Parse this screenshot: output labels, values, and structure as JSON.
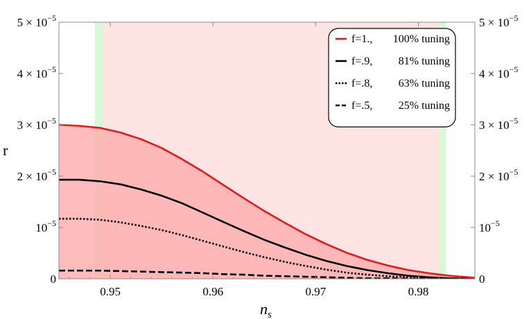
{
  "chart_data": {
    "type": "line",
    "xlabel": "n",
    "xlabel_sub": "s",
    "ylabel": "r",
    "xlim": [
      0.945,
      0.9855
    ],
    "ylim": [
      0,
      5e-05
    ],
    "x_ticks": [
      {
        "value": 0.95,
        "label": "0.95"
      },
      {
        "value": 0.96,
        "label": "0.96"
      },
      {
        "value": 0.97,
        "label": "0.97"
      },
      {
        "value": 0.98,
        "label": "0.98"
      }
    ],
    "y_ticks": [
      {
        "value": 0,
        "label": "0",
        "mantissa": "",
        "exp": ""
      },
      {
        "value": 1e-05,
        "label": "10",
        "mantissa": "",
        "exp": "−5"
      },
      {
        "value": 2e-05,
        "label": "10",
        "mantissa": "2 × ",
        "exp": "−5"
      },
      {
        "value": 3e-05,
        "label": "10",
        "mantissa": "3 × ",
        "exp": "−5"
      },
      {
        "value": 4e-05,
        "label": "10",
        "mantissa": "4 × ",
        "exp": "−5"
      },
      {
        "value": 5e-05,
        "label": "10",
        "mantissa": "5 × ",
        "exp": "−5"
      }
    ],
    "bands": [
      {
        "from": 0.9485,
        "to": 0.9827,
        "color": "#ffe4e4"
      },
      {
        "from": 0.9485,
        "to": 0.9493,
        "color": "#d8f8d8"
      },
      {
        "from": 0.982,
        "to": 0.9827,
        "color": "#d8f8d8"
      }
    ],
    "fill_under_series": 0,
    "fill_color": "#ffb0b0",
    "series": [
      {
        "name": "f=1., 100% tuning",
        "color": "#e41a1a",
        "dash": "solid",
        "x": [
          0.945,
          0.947,
          0.949,
          0.951,
          0.953,
          0.955,
          0.957,
          0.959,
          0.961,
          0.963,
          0.965,
          0.967,
          0.969,
          0.971,
          0.973,
          0.975,
          0.977,
          0.979,
          0.981,
          0.983,
          0.9855
        ],
        "values": [
          3e-05,
          2.98e-05,
          2.94e-05,
          2.85e-05,
          2.72e-05,
          2.55e-05,
          2.33e-05,
          2.09e-05,
          1.83e-05,
          1.57e-05,
          1.32e-05,
          1.09e-05,
          8.7e-06,
          6.8e-06,
          5.1e-06,
          3.7e-06,
          2.6e-06,
          1.7e-06,
          1.1e-06,
          6e-07,
          2e-07
        ]
      },
      {
        "name": "f=.9, 81% tuning",
        "color": "#000000",
        "dash": "solid",
        "x": [
          0.945,
          0.947,
          0.949,
          0.951,
          0.953,
          0.955,
          0.957,
          0.959,
          0.961,
          0.963,
          0.965,
          0.967,
          0.969,
          0.971,
          0.973,
          0.975,
          0.977,
          0.979,
          0.981,
          0.983,
          0.9855
        ],
        "values": [
          1.93e-05,
          1.93e-05,
          1.9e-05,
          1.84e-05,
          1.74e-05,
          1.62e-05,
          1.47e-05,
          1.29e-05,
          1.11e-05,
          9.3e-06,
          7.6e-06,
          6.1e-06,
          4.7e-06,
          3.5e-06,
          2.5e-06,
          1.7e-06,
          1.1e-06,
          6e-07,
          3e-07,
          1e-07,
          0
        ]
      },
      {
        "name": "f=.8, 63% tuning",
        "color": "#000000",
        "dash": "dotted",
        "x": [
          0.945,
          0.947,
          0.949,
          0.951,
          0.953,
          0.955,
          0.957,
          0.959,
          0.961,
          0.963,
          0.965,
          0.967,
          0.969,
          0.971,
          0.973,
          0.975,
          0.977,
          0.979,
          0.981,
          0.983,
          0.9855
        ],
        "values": [
          1.17e-05,
          1.17e-05,
          1.15e-05,
          1.1e-05,
          1.03e-05,
          9.5e-06,
          8.5e-06,
          7.4e-06,
          6.3e-06,
          5.2e-06,
          4.2e-06,
          3.3e-06,
          2.5e-06,
          1.8e-06,
          1.2e-06,
          8e-07,
          5e-07,
          3e-07,
          1e-07,
          1e-07,
          0
        ]
      },
      {
        "name": "f=.5, 25% tuning",
        "color": "#000000",
        "dash": "dashed",
        "x": [
          0.945,
          0.947,
          0.949,
          0.951,
          0.953,
          0.955,
          0.957,
          0.959,
          0.961,
          0.963,
          0.965,
          0.967,
          0.969,
          0.971,
          0.973,
          0.975,
          0.977,
          0.979,
          0.981,
          0.983,
          0.9855
        ],
        "values": [
          1.6e-06,
          1.6e-06,
          1.6e-06,
          1.5e-06,
          1.4e-06,
          1.3e-06,
          1.2e-06,
          1.1e-06,
          9e-07,
          8e-07,
          6e-07,
          5e-07,
          4e-07,
          3e-07,
          2e-07,
          1e-07,
          1e-07,
          0,
          0,
          0,
          0
        ]
      }
    ],
    "legend": {
      "position": "top-right",
      "entries": [
        {
          "f": "f=1.,",
          "pct": "100% tuning"
        },
        {
          "f": "f=.9,",
          "pct": "81% tuning"
        },
        {
          "f": "f=.8,",
          "pct": "63% tuning"
        },
        {
          "f": "f=.5,",
          "pct": "25% tuning"
        }
      ]
    },
    "grid": false
  }
}
